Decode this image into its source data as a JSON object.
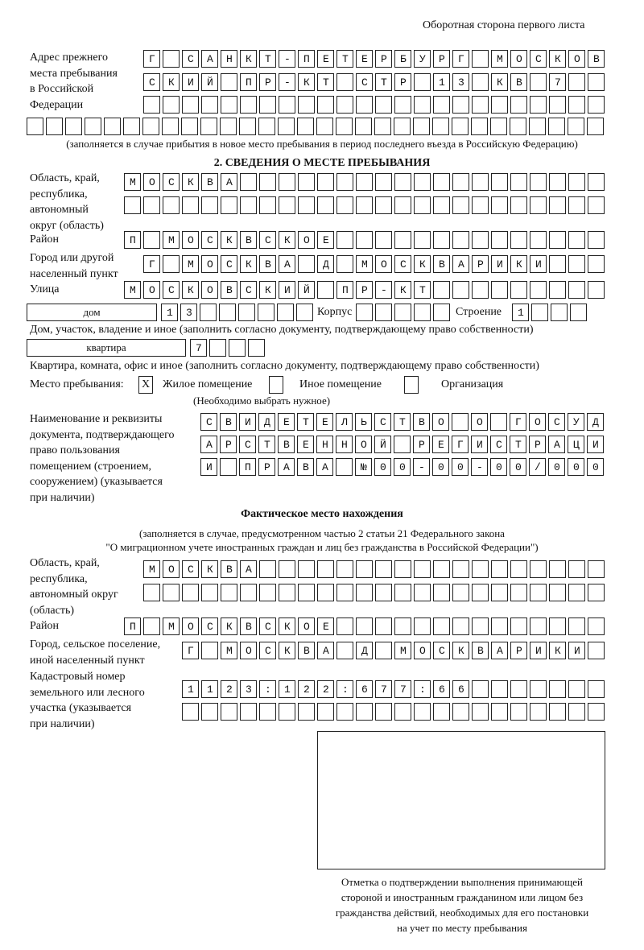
{
  "header": {
    "side_note": "Оборотная сторона первого листа"
  },
  "previous_address": {
    "label": [
      "Адрес прежнего",
      "места пребывания",
      "в Российской",
      "Федерации"
    ],
    "rows": [
      "Г САНКТ-ПЕТЕРБУРГ МОСКОВ",
      "СКИЙ ПР-КТ СТР 13 КВ 7  ",
      "                        ",
      "                              "
    ],
    "note": "(заполняется в случае прибытия в новое место пребывания в период последнего въезда в Российскую Федерацию)"
  },
  "section2": {
    "title": "2. СВЕДЕНИЯ О МЕСТЕ ПРЕБЫВАНИЯ",
    "region_label": [
      "Область, край,",
      "республика,",
      "автономный",
      "округ (область)"
    ],
    "region_rows": [
      "МОСКВА                   ",
      "                         "
    ],
    "district_label": "Район",
    "district_row": "П МОСКВСКОЕ              ",
    "city_label": [
      "Город или другой",
      "населенный пункт"
    ],
    "city_row": "Г МОСКВА Д МОСКВАРИКИ   ",
    "street_label": "Улица",
    "street_row": "МОСКОВСКИЙ ПР-КТ         ",
    "house_type": "дом",
    "house_row": "13      ",
    "korpus_label": "Корпус",
    "korpus_row": "     ",
    "building_label": "Строение",
    "building_row": "1   ",
    "house_caption": "Дом, участок, владение и иное (заполнить согласно документу, подтверждающему право собственности)",
    "apartment_type": "квартира",
    "apartment_row": "7   ",
    "apartment_caption": "Квартира, комната, офис и иное (заполнить согласно документу, подтверждающему право собственности)",
    "stay_place_label": "Место пребывания:",
    "options": [
      {
        "label": "Жилое помещение",
        "checked": true,
        "mark": "X"
      },
      {
        "label": "Иное помещение",
        "checked": false,
        "mark": ""
      },
      {
        "label": "Организация",
        "checked": false,
        "mark": ""
      }
    ],
    "choose_hint": "(Необходимо выбрать нужное)",
    "document_label": [
      "Наименование и реквизиты",
      "документа, подтверждающего",
      "право пользования",
      "помещением (строением,",
      "сооружением) (указывается",
      "при наличии)"
    ],
    "document_rows": [
      "СВИДЕТЕЛЬСТВО О ГОСУД",
      "АРСТВЕННОЙ РЕГИСТРАЦИ",
      "И ПРАВА №00-00-00/000"
    ]
  },
  "actual_location": {
    "title": "Фактическое место нахождения",
    "note": [
      "(заполняется в случае, предусмотренном частью 2 статьи 21 Федерального закона",
      "\"О миграционном учете иностранных граждан и лиц без гражданства в Российской Федерации\")"
    ],
    "region_label": [
      "Область, край,",
      "республика,",
      "автономный округ",
      "(область)"
    ],
    "region_rows": [
      "МОСКВА                  ",
      "                        "
    ],
    "district_label": "Район",
    "district_row": "П МОСКВСКОЕ              ",
    "city_label": [
      "Город, сельское поселение,",
      "иной населенный пункт"
    ],
    "city_row": "Г МОСКВА Д МОСКВАРИКИ ",
    "cadastral_label": [
      "Кадастровый номер",
      "земельного или лесного",
      "участка (указывается",
      "при наличии)"
    ],
    "cadastral_rows": [
      "1123:122:677:66       ",
      "                      "
    ]
  },
  "confirmation": {
    "caption": [
      "Отметка о подтверждении выполнения принимающей",
      "стороной и иностранным гражданином или лицом без",
      "гражданства действий, необходимых для его постановки",
      "на учет по месту пребывания"
    ]
  }
}
